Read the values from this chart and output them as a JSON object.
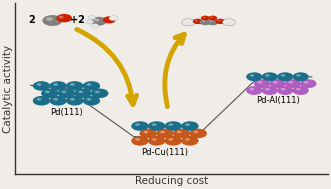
{
  "background_color": "#f0ede8",
  "axes_color": "#333333",
  "xlabel": "Reducing cost",
  "ylabel": "Catalytic activity",
  "xlabel_fontsize": 7.5,
  "ylabel_fontsize": 7.5,
  "pd111_label": "Pd(111)",
  "pdcu111_label": "Pd-Cu(111)",
  "pdal111_label": "Pd-Al(111)",
  "label_fontsize": 6,
  "arrow_color": "#D4A500",
  "teal_ball": "#1a6e8a",
  "orange_ball": "#c8571a",
  "purple_ball": "#b05ec0",
  "gray_ball": "#808080",
  "red_ball": "#cc2200",
  "white_ball": "#e8e8e8",
  "dark_teal": "#0d4a60"
}
